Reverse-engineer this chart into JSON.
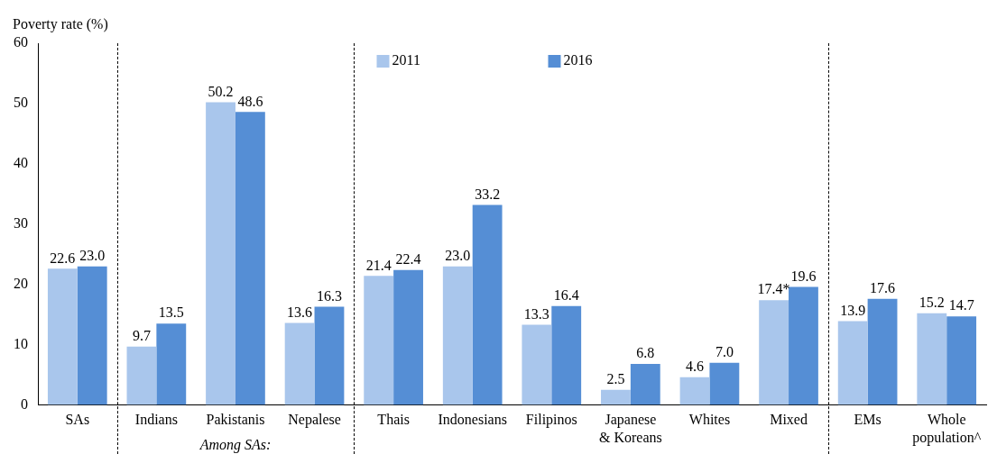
{
  "chart_data": {
    "type": "bar",
    "ylabel": "Poverty rate (%)",
    "categories": [
      "SAs",
      "Indians",
      "Pakistanis",
      "Nepalese",
      "Thais",
      "Indonesians",
      "Filipinos",
      "Japanese\n& Koreans",
      "Whites",
      "Mixed",
      "EMs",
      "Whole\npopulation^"
    ],
    "series": [
      {
        "name": "2011",
        "color": "#a9c6ec",
        "values": [
          22.6,
          9.7,
          50.2,
          13.6,
          21.4,
          23.0,
          13.3,
          2.5,
          4.6,
          17.4,
          13.9,
          15.2
        ],
        "value_labels": [
          "22.6",
          "9.7",
          "50.2",
          "13.6",
          "21.4",
          "23.0",
          "13.3",
          "2.5",
          "4.6",
          "17.4*",
          "13.9",
          "15.2"
        ]
      },
      {
        "name": "2016",
        "color": "#558ed5",
        "values": [
          23.0,
          13.5,
          48.6,
          16.3,
          22.4,
          33.2,
          16.4,
          6.8,
          7.0,
          19.6,
          17.6,
          14.7
        ],
        "value_labels": [
          "23.0",
          "13.5",
          "48.6",
          "16.3",
          "22.4",
          "33.2",
          "16.4",
          "6.8",
          "7.0",
          "19.6",
          "17.6",
          "14.7"
        ]
      }
    ],
    "ylim": [
      0,
      60
    ],
    "yticks": [
      0,
      10,
      20,
      30,
      40,
      50,
      60
    ],
    "grid": false,
    "legend": "top",
    "annotations": [
      "Among SAs:"
    ]
  }
}
